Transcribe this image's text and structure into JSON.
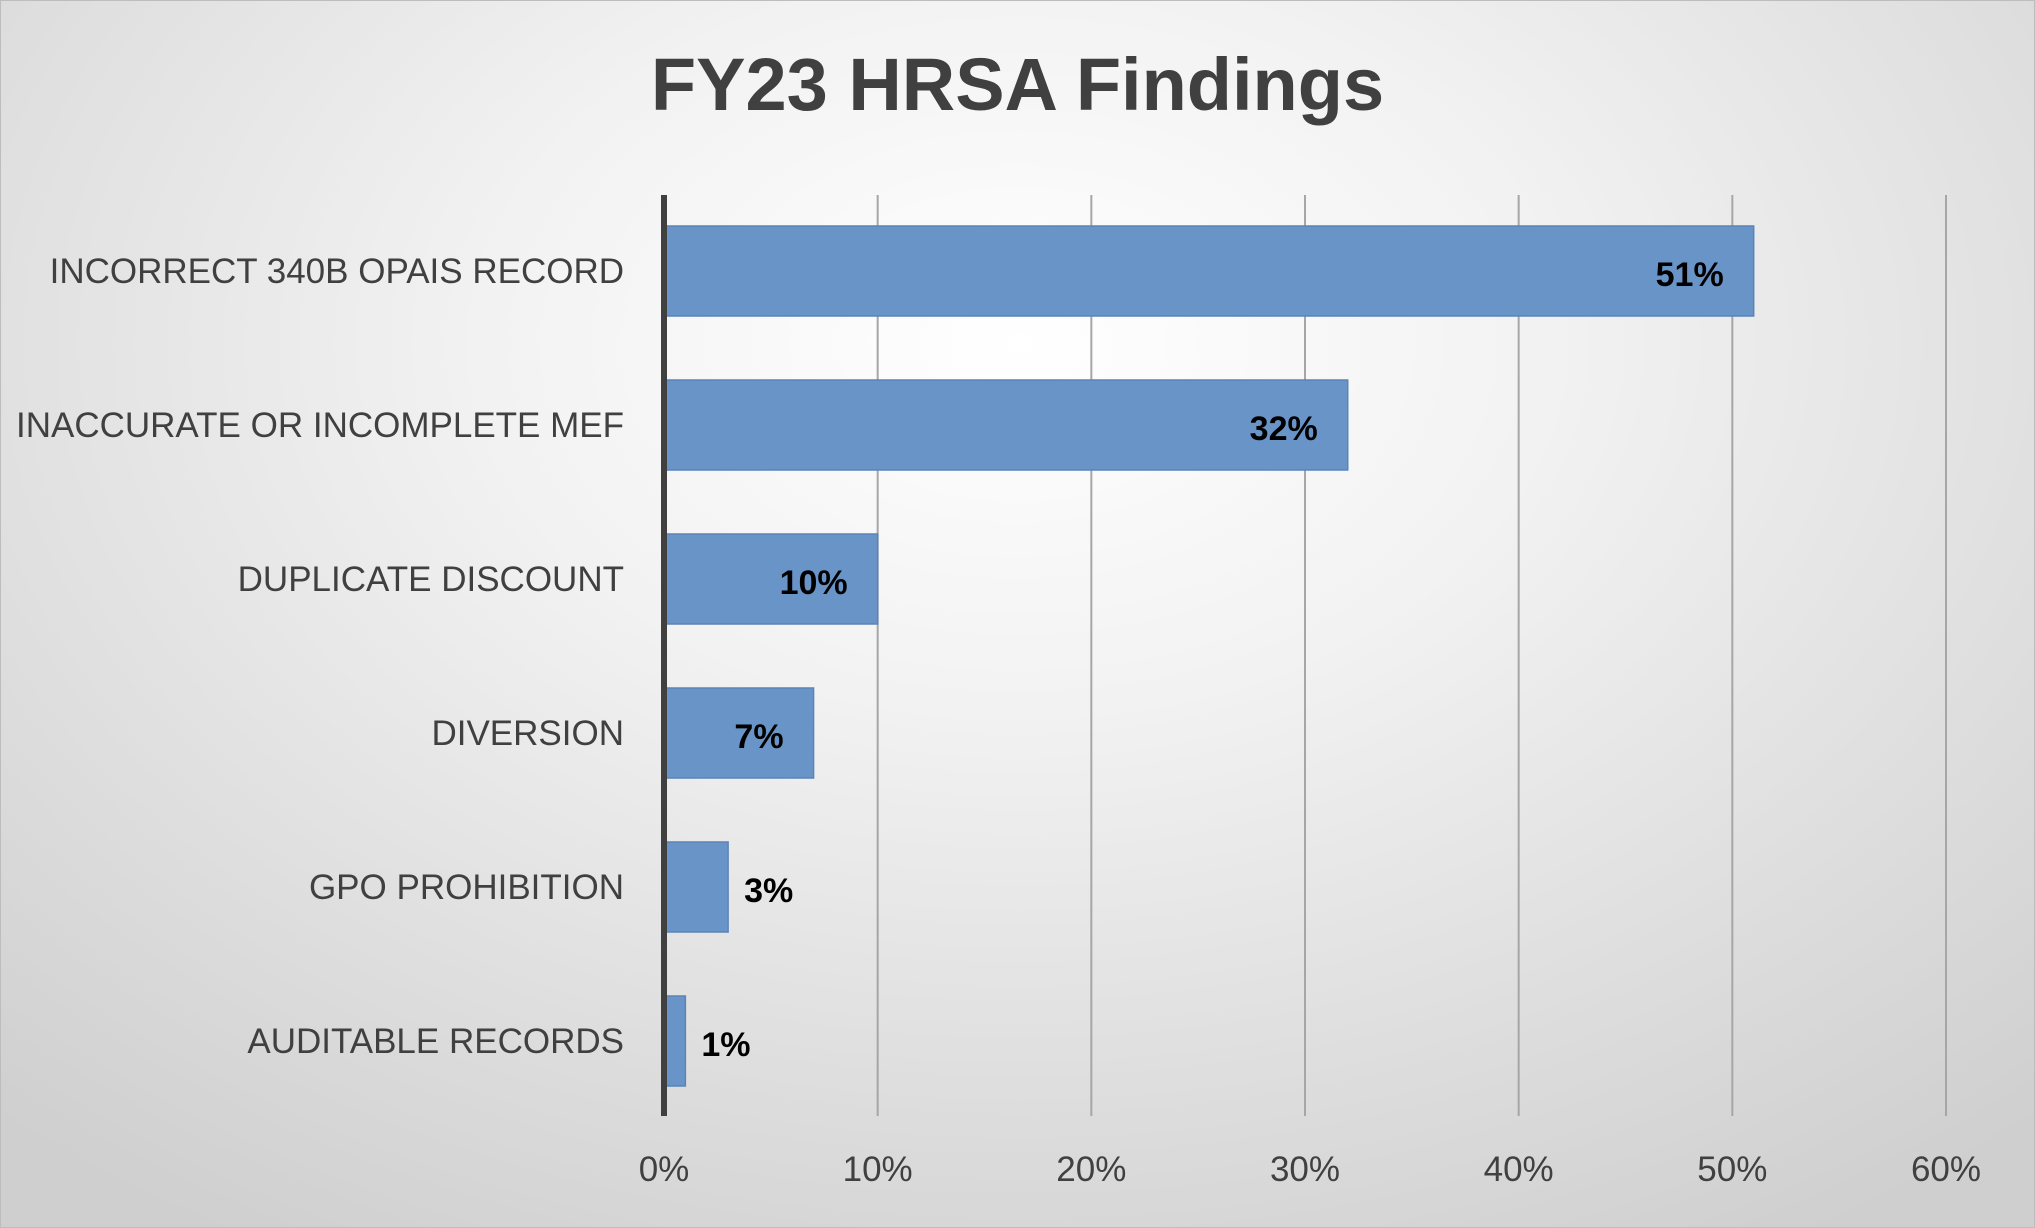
{
  "chart_data": {
    "type": "bar",
    "orientation": "horizontal",
    "title": "FY23 HRSA Findings",
    "xlabel": "",
    "ylabel": "",
    "categories": [
      "INCORRECT 340B OPAIS RECORD",
      "INACCURATE OR INCOMPLETE MEF",
      "DUPLICATE DISCOUNT",
      "DIVERSION",
      "GPO PROHIBITION",
      "AUDITABLE RECORDS"
    ],
    "values": [
      51,
      32,
      10,
      7,
      3,
      1
    ],
    "data_labels": [
      "51%",
      "32%",
      "10%",
      "7%",
      "3%",
      "1%"
    ],
    "xlim": [
      0,
      60
    ],
    "x_ticks": [
      0,
      10,
      20,
      30,
      40,
      50,
      60
    ],
    "x_tick_labels": [
      "0%",
      "10%",
      "20%",
      "30%",
      "40%",
      "50%",
      "60%"
    ],
    "grid": "vertical",
    "legend": "none",
    "colors": {
      "bar": "#6994c7",
      "bar_edge": "#5a84b8",
      "grid": "#a6a6a6",
      "axis": "#404040",
      "text": "#404040"
    }
  }
}
